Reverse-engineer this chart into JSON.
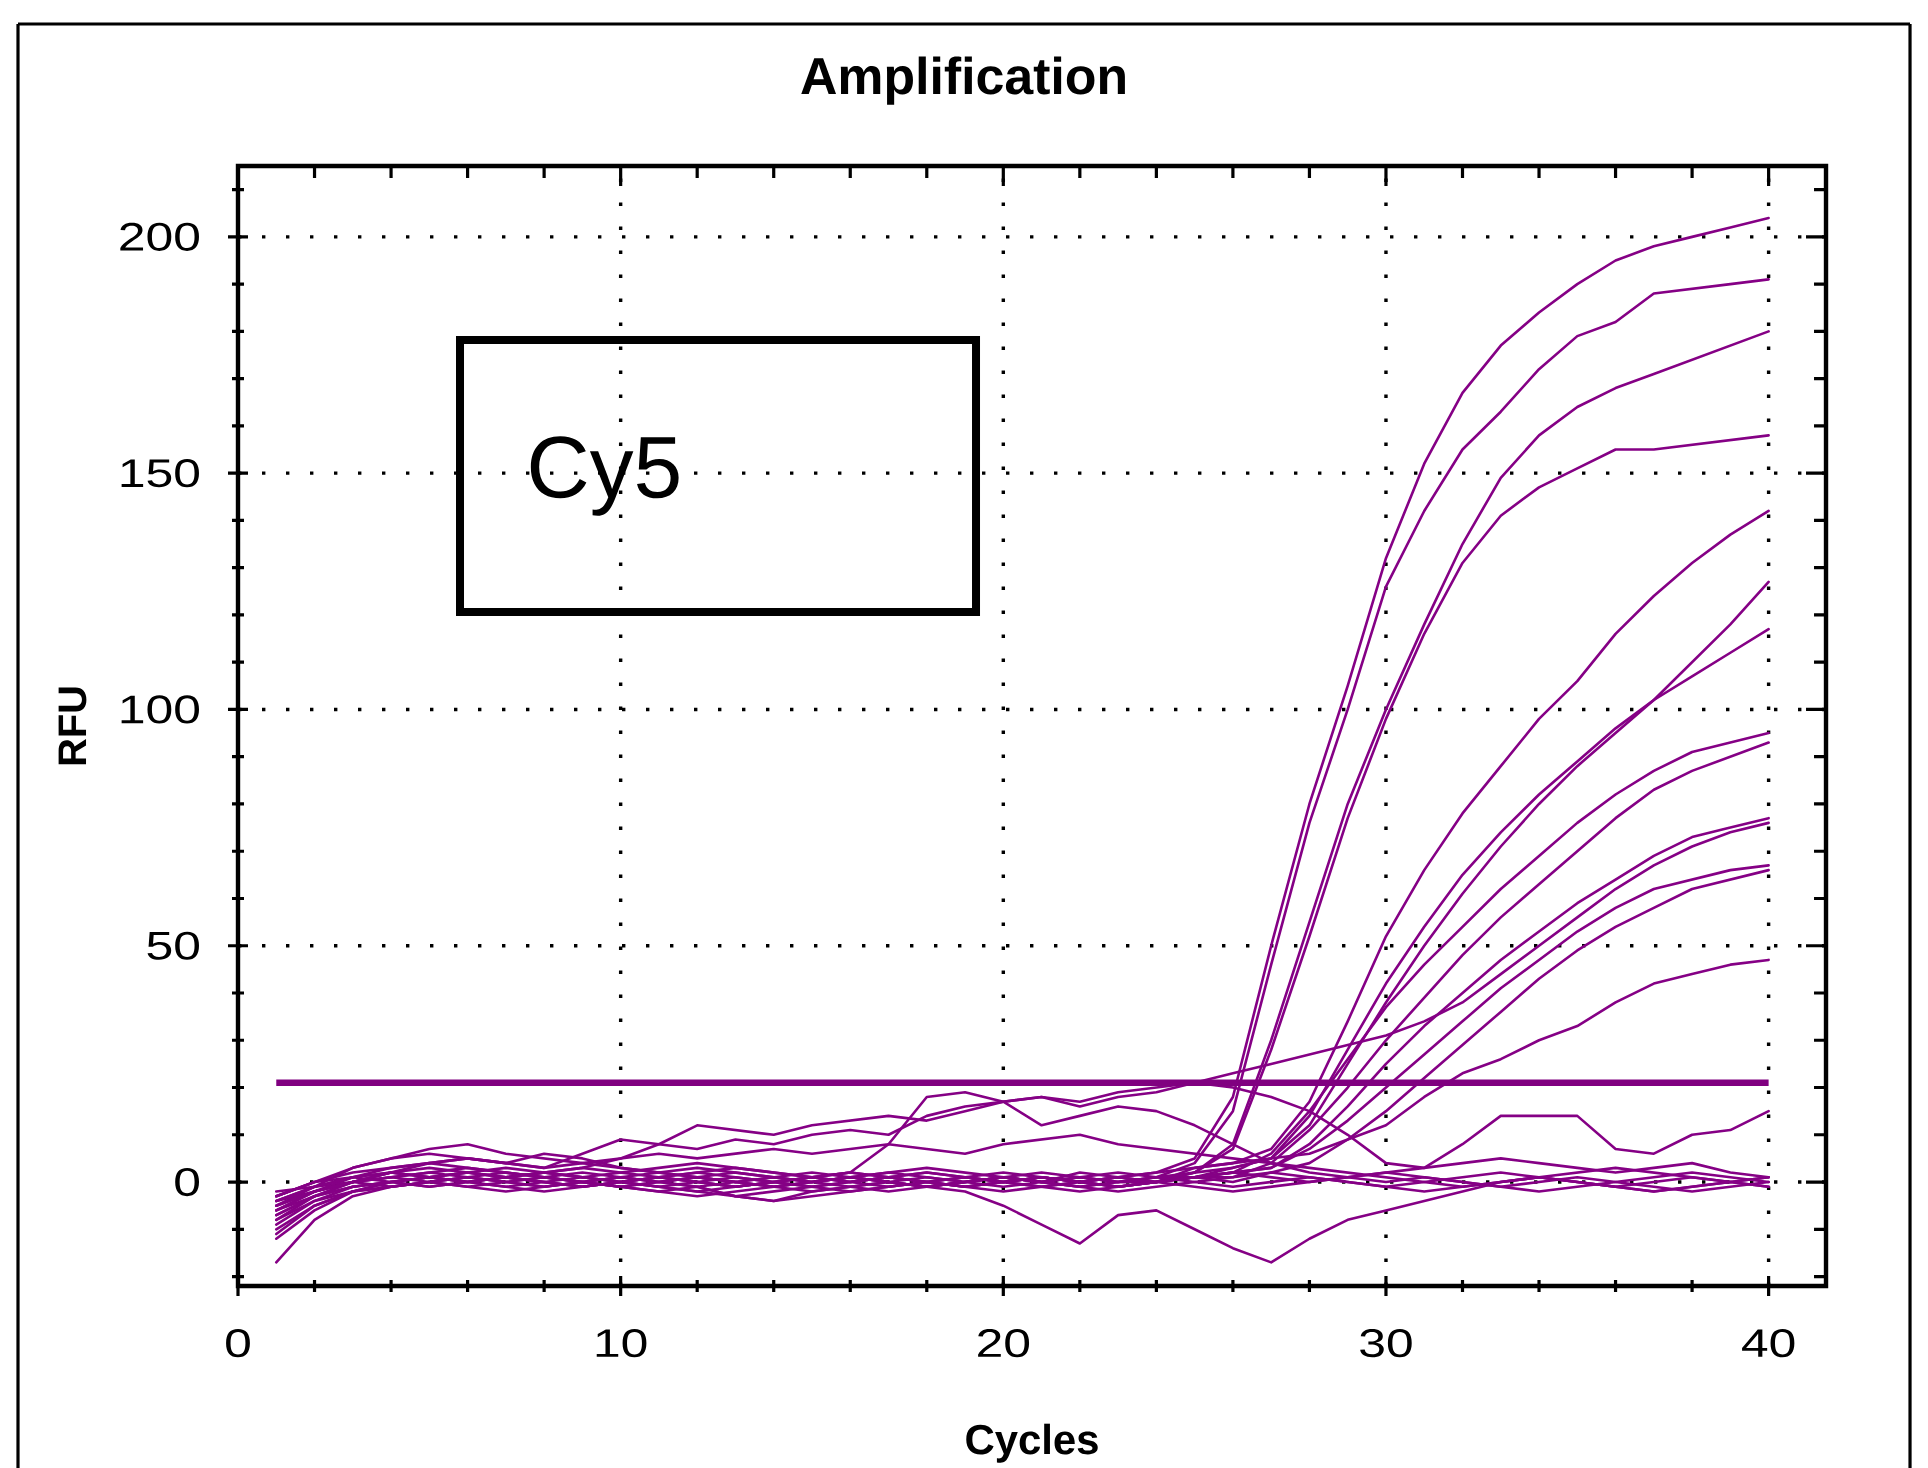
{
  "chart_data": {
    "type": "line",
    "title": "Amplification",
    "xlabel": "Cycles",
    "ylabel": "RFU",
    "annotations": [
      "Cy5"
    ],
    "x": [
      1,
      2,
      3,
      4,
      5,
      6,
      7,
      8,
      9,
      10,
      11,
      12,
      13,
      14,
      15,
      16,
      17,
      18,
      19,
      20,
      21,
      22,
      23,
      24,
      25,
      26,
      27,
      28,
      29,
      30,
      31,
      32,
      33,
      34,
      35,
      36,
      37,
      38,
      39,
      40
    ],
    "xlim": [
      0,
      41.5
    ],
    "ylim": [
      -22,
      215
    ],
    "xticks": [
      0,
      {
        "value": 2,
        "label": null
      },
      {
        "value": 4,
        "label": null
      },
      {
        "value": 6,
        "label": null
      },
      {
        "value": 8,
        "label": null
      },
      10,
      {
        "value": 12,
        "label": null
      },
      {
        "value": 14,
        "label": null
      },
      {
        "value": 16,
        "label": null
      },
      {
        "value": 18,
        "label": null
      },
      20,
      {
        "value": 22,
        "label": null
      },
      {
        "value": 24,
        "label": null
      },
      {
        "value": 26,
        "label": null
      },
      {
        "value": 28,
        "label": null
      },
      30,
      {
        "value": 32,
        "label": null
      },
      {
        "value": 34,
        "label": null
      },
      {
        "value": 36,
        "label": null
      },
      {
        "value": 38,
        "label": null
      },
      40
    ],
    "yticks": [
      {
        "value": -20,
        "label": null
      },
      {
        "value": -10,
        "label": null
      },
      0,
      {
        "value": 10,
        "label": null
      },
      {
        "value": 20,
        "label": null
      },
      {
        "value": 30,
        "label": null
      },
      {
        "value": 40,
        "label": null
      },
      50,
      {
        "value": 60,
        "label": null
      },
      {
        "value": 70,
        "label": null
      },
      {
        "value": 80,
        "label": null
      },
      {
        "value": 90,
        "label": null
      },
      100,
      {
        "value": 110,
        "label": null
      },
      {
        "value": 120,
        "label": null
      },
      {
        "value": 130,
        "label": null
      },
      {
        "value": 140,
        "label": null
      },
      150,
      {
        "value": 160,
        "label": null
      },
      {
        "value": 170,
        "label": null
      },
      {
        "value": 180,
        "label": null
      },
      {
        "value": 190,
        "label": null
      },
      200,
      {
        "value": 210,
        "label": null
      }
    ],
    "grid": true,
    "ref_lines": [
      {
        "axis": "y",
        "value": 21,
        "color": "#800080"
      }
    ],
    "series": [
      {
        "color": "#850085",
        "values": [
          -6,
          -3,
          -1,
          0,
          1,
          0,
          1,
          2,
          1,
          0,
          1,
          0,
          -1,
          0,
          1,
          0,
          1,
          2,
          1,
          0,
          1,
          0,
          1,
          2,
          5,
          18,
          50,
          80,
          105,
          132,
          152,
          167,
          177,
          184,
          190,
          195,
          198,
          200,
          202,
          204
        ]
      },
      {
        "color": "#850085",
        "values": [
          -4,
          -2,
          0,
          1,
          2,
          1,
          0,
          1,
          0,
          -1,
          0,
          1,
          0,
          -1,
          0,
          1,
          0,
          -1,
          0,
          1,
          0,
          -1,
          0,
          1,
          4,
          15,
          46,
          76,
          100,
          126,
          142,
          155,
          163,
          172,
          179,
          182,
          188,
          189,
          190,
          191
        ]
      },
      {
        "color": "#850085",
        "values": [
          -8,
          -4,
          -2,
          -1,
          0,
          1,
          0,
          -1,
          0,
          1,
          2,
          1,
          0,
          1,
          0,
          -1,
          -2,
          -1,
          0,
          1,
          0,
          1,
          0,
          0,
          2,
          8,
          30,
          55,
          80,
          100,
          118,
          135,
          149,
          158,
          164,
          168,
          171,
          174,
          177,
          180
        ]
      },
      {
        "color": "#850085",
        "values": [
          -3,
          0,
          2,
          3,
          4,
          3,
          2,
          1,
          2,
          1,
          0,
          1,
          2,
          1,
          0,
          1,
          0,
          1,
          0,
          -1,
          0,
          1,
          0,
          0,
          2,
          7,
          28,
          52,
          77,
          98,
          116,
          131,
          141,
          147,
          151,
          155,
          155,
          156,
          157,
          158
        ]
      },
      {
        "color": "#850085",
        "values": [
          -10,
          -5,
          -2,
          0,
          1,
          0,
          -1,
          -2,
          -1,
          0,
          -1,
          -2,
          -1,
          0,
          1,
          0,
          -1,
          0,
          1,
          0,
          -1,
          -2,
          -1,
          0,
          3,
          4,
          7,
          17,
          34,
          52,
          66,
          78,
          88,
          98,
          106,
          116,
          124,
          131,
          137,
          142
        ]
      },
      {
        "color": "#850085",
        "values": [
          -2,
          -1,
          0,
          -1,
          0,
          1,
          2,
          1,
          0,
          -1,
          -2,
          -1,
          -3,
          -4,
          -2,
          -1,
          0,
          -1,
          0,
          1,
          0,
          -1,
          0,
          1,
          2,
          3,
          5,
          12,
          25,
          38,
          50,
          61,
          71,
          80,
          88,
          95,
          102,
          110,
          118,
          127
        ]
      },
      {
        "color": "#850085",
        "values": [
          -7,
          -3,
          0,
          2,
          1,
          2,
          3,
          2,
          1,
          2,
          3,
          4,
          3,
          2,
          1,
          2,
          1,
          0,
          1,
          2,
          1,
          0,
          -1,
          0,
          1,
          3,
          5,
          14,
          28,
          42,
          54,
          65,
          74,
          82,
          89,
          96,
          102,
          107,
          112,
          117
        ]
      },
      {
        "color": "#850085",
        "values": [
          -5,
          -1,
          3,
          5,
          6,
          5,
          4,
          6,
          5,
          3,
          2,
          3,
          2,
          1,
          0,
          1,
          2,
          1,
          0,
          1,
          2,
          1,
          0,
          1,
          1,
          2,
          6,
          15,
          26,
          37,
          46,
          54,
          62,
          69,
          76,
          82,
          87,
          91,
          93,
          95
        ]
      },
      {
        "color": "#850085",
        "values": [
          -12,
          -6,
          -2,
          0,
          -1,
          0,
          1,
          0,
          -1,
          0,
          1,
          2,
          1,
          0,
          -1,
          0,
          1,
          0,
          -1,
          0,
          1,
          0,
          1,
          0,
          1,
          1,
          4,
          11,
          20,
          30,
          39,
          48,
          56,
          63,
          70,
          77,
          83,
          87,
          90,
          93
        ]
      },
      {
        "color": "#850085",
        "values": [
          -4,
          -1,
          1,
          2,
          1,
          0,
          -1,
          0,
          1,
          0,
          -1,
          -2,
          -3,
          -2,
          -1,
          0,
          1,
          0,
          -1,
          0,
          1,
          0,
          -1,
          0,
          1,
          2,
          3,
          8,
          16,
          25,
          33,
          40,
          47,
          53,
          59,
          64,
          69,
          73,
          75,
          77
        ]
      },
      {
        "color": "#850085",
        "values": [
          -6,
          -2,
          1,
          3,
          4,
          5,
          4,
          3,
          6,
          9,
          8,
          7,
          9,
          8,
          10,
          11,
          10,
          14,
          16,
          17,
          18,
          16,
          18,
          19,
          21,
          23,
          25,
          27,
          29,
          31,
          34,
          38,
          44,
          50,
          56,
          62,
          67,
          71,
          74,
          76
        ]
      },
      {
        "color": "#850085",
        "values": [
          -3,
          0,
          1,
          0,
          -1,
          0,
          1,
          2,
          1,
          0,
          -1,
          0,
          1,
          0,
          -1,
          -2,
          -1,
          0,
          1,
          0,
          -1,
          0,
          1,
          0,
          1,
          2,
          3,
          7,
          13,
          20,
          27,
          34,
          41,
          47,
          53,
          58,
          62,
          64,
          66,
          67
        ]
      },
      {
        "color": "#850085",
        "values": [
          -9,
          -4,
          -1,
          0,
          1,
          2,
          1,
          0,
          -1,
          0,
          1,
          0,
          -1,
          0,
          1,
          2,
          1,
          0,
          -1,
          0,
          1,
          0,
          -1,
          0,
          1,
          0,
          2,
          4,
          9,
          15,
          22,
          29,
          36,
          43,
          49,
          54,
          58,
          62,
          64,
          66
        ]
      },
      {
        "color": "#850085",
        "values": [
          -5,
          -2,
          0,
          1,
          0,
          -1,
          0,
          1,
          0,
          -1,
          0,
          1,
          0,
          -1,
          0,
          1,
          0,
          -1,
          0,
          1,
          0,
          2,
          1,
          2,
          3,
          4,
          5,
          6,
          9,
          12,
          18,
          23,
          26,
          30,
          33,
          38,
          42,
          44,
          46,
          47
        ]
      },
      {
        "color": "#850085",
        "values": [
          -8,
          -3,
          0,
          2,
          3,
          2,
          1,
          2,
          3,
          5,
          8,
          12,
          11,
          10,
          12,
          13,
          14,
          13,
          15,
          17,
          18,
          17,
          19,
          20,
          21,
          20,
          18,
          15,
          10,
          4,
          3,
          8,
          14,
          14,
          14,
          7,
          6,
          10,
          11,
          15
        ]
      },
      {
        "color": "#850085",
        "values": [
          -17,
          -8,
          -3,
          -1,
          0,
          1,
          0,
          -1,
          0,
          1,
          0,
          -1,
          0,
          -1,
          -2,
          -1,
          0,
          -1,
          -2,
          -5,
          -9,
          -13,
          -7,
          -6,
          -10,
          -14,
          -17,
          -12,
          -8,
          -6,
          -4,
          -2,
          0,
          1,
          0,
          -1,
          0,
          1,
          0,
          -1
        ]
      },
      {
        "color": "#850085",
        "values": [
          -5,
          -2,
          0,
          1,
          2,
          3,
          2,
          1,
          0,
          -1,
          -2,
          -3,
          -2,
          -1,
          0,
          1,
          2,
          3,
          2,
          1,
          0,
          -1,
          -2,
          -1,
          0,
          1,
          2,
          1,
          0,
          -1,
          0,
          1,
          2,
          1,
          0,
          -1,
          -2,
          -1,
          0,
          1
        ]
      },
      {
        "color": "#850085",
        "values": [
          -3,
          0,
          3,
          5,
          7,
          8,
          6,
          5,
          4,
          3,
          2,
          1,
          0,
          1,
          2,
          1,
          0,
          -1,
          0,
          1,
          0,
          1,
          2,
          1,
          0,
          -1,
          0,
          1,
          0,
          -1,
          -2,
          -1,
          0,
          1,
          2,
          3,
          2,
          1,
          0,
          1
        ]
      },
      {
        "color": "#850085",
        "values": [
          -11,
          -5,
          -2,
          -1,
          0,
          -1,
          -2,
          -1,
          0,
          1,
          0,
          -1,
          -3,
          -4,
          -3,
          -2,
          -1,
          0,
          -1,
          -2,
          -1,
          0,
          1,
          0,
          -1,
          -2,
          -1,
          0,
          1,
          2,
          1,
          0,
          -1,
          0,
          1,
          0,
          -1,
          -2,
          -1,
          0
        ]
      },
      {
        "color": "#850085",
        "values": [
          -4,
          -1,
          1,
          2,
          1,
          0,
          1,
          2,
          3,
          2,
          1,
          2,
          3,
          2,
          1,
          0,
          1,
          2,
          1,
          0,
          1,
          0,
          -1,
          0,
          1,
          2,
          1,
          0,
          1,
          2,
          3,
          4,
          5,
          4,
          3,
          2,
          3,
          4,
          2,
          1
        ]
      },
      {
        "color": "#850085",
        "values": [
          -6,
          -2,
          0,
          2,
          4,
          5,
          4,
          3,
          4,
          5,
          6,
          5,
          6,
          7,
          6,
          7,
          8,
          7,
          6,
          8,
          9,
          10,
          8,
          7,
          6,
          5,
          4,
          3,
          2,
          1,
          0,
          -1,
          0,
          1,
          0,
          -1,
          -2,
          -1,
          0,
          -1
        ]
      },
      {
        "color": "#850085",
        "values": [
          -7,
          -3,
          -1,
          0,
          1,
          2,
          1,
          0,
          -1,
          0,
          1,
          0,
          -1,
          0,
          1,
          2,
          8,
          18,
          19,
          17,
          12,
          14,
          16,
          15,
          12,
          8,
          4,
          2,
          1,
          0,
          1,
          0,
          -1,
          -2,
          -1,
          0,
          1,
          2,
          1,
          0
        ]
      }
    ]
  }
}
